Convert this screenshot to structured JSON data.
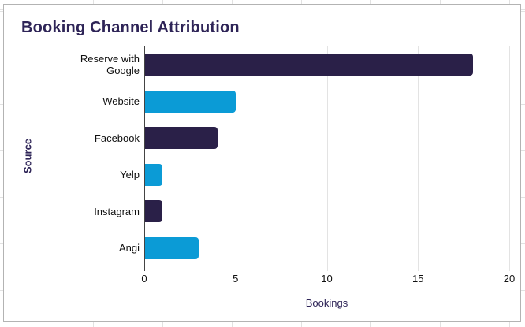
{
  "chart_data": {
    "type": "bar",
    "orientation": "horizontal",
    "title": "Booking Channel Attribution",
    "xlabel": "Bookings",
    "ylabel": "Source",
    "categories": [
      "Reserve with Google",
      "Website",
      "Facebook",
      "Yelp",
      "Instagram",
      "Angi"
    ],
    "values": [
      18,
      5,
      4,
      1,
      1,
      3
    ],
    "bar_colors": [
      "#2a2048",
      "#0b9bd6",
      "#2a2048",
      "#0b9bd6",
      "#2a2048",
      "#0b9bd6"
    ],
    "xlim": [
      0,
      20
    ],
    "xticks": [
      0,
      5,
      10,
      15,
      20
    ],
    "grid": "vertical-gridlines",
    "legend": "none"
  },
  "colors": {
    "title": "#2e2457",
    "axis_title": "#2e2457",
    "tick_label": "#111111",
    "axis_line": "#444444",
    "gridline": "#e3e3e3",
    "card_border": "#b3b3b3",
    "card_bg": "#ffffff",
    "sheet_grid": "#e2e2e2"
  }
}
